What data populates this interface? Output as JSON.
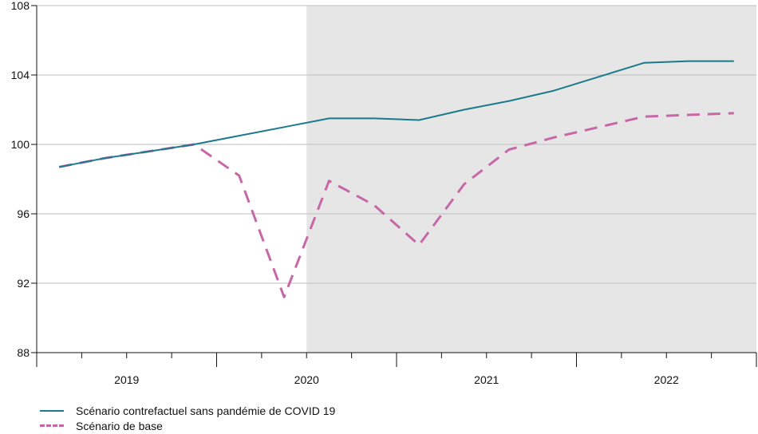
{
  "chart_data": {
    "type": "line",
    "x": [
      "2019-Q1",
      "2019-Q2",
      "2019-Q3",
      "2019-Q4",
      "2020-Q1",
      "2020-Q2",
      "2020-Q3",
      "2020-Q4",
      "2021-Q1",
      "2021-Q2",
      "2021-Q3",
      "2021-Q4",
      "2022-Q1",
      "2022-Q2",
      "2022-Q3",
      "2022-Q4"
    ],
    "year_labels": [
      "2019",
      "2020",
      "2021",
      "2022"
    ],
    "y_ticks": [
      "88",
      "92",
      "96",
      "100",
      "104",
      "108"
    ],
    "ylim": [
      88,
      108
    ],
    "shaded_from": "2020-Q3",
    "series": [
      {
        "name": "Scénario contrefactuel sans pandémie de COVID 19",
        "color": "#1b7a8c",
        "style": "solid",
        "values": [
          98.7,
          99.2,
          99.6,
          100.0,
          100.5,
          101.0,
          101.5,
          101.5,
          101.4,
          102.0,
          102.5,
          103.1,
          103.9,
          104.7,
          104.8,
          104.8
        ]
      },
      {
        "name": "Scénario de base",
        "color": "#c867a8",
        "style": "dashed",
        "values": [
          98.7,
          99.2,
          99.6,
          100.0,
          98.2,
          91.2,
          97.9,
          96.5,
          94.2,
          97.7,
          99.7,
          100.4,
          101.0,
          101.6,
          101.7,
          101.8
        ]
      }
    ],
    "grid": true,
    "legend_position": "bottom-left",
    "shading_color": "#e6e6e6"
  }
}
